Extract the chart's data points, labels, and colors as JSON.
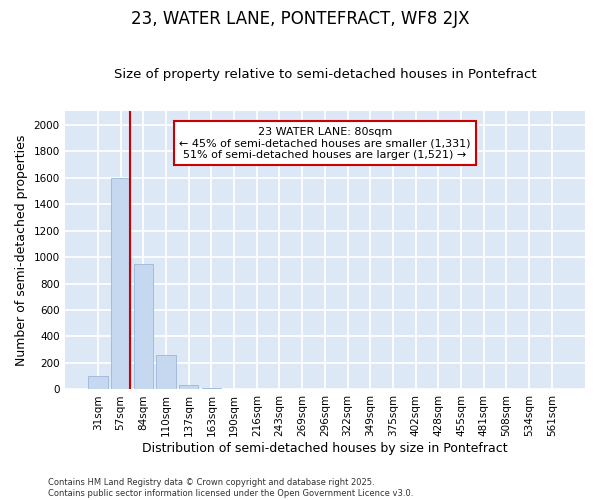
{
  "title": "23, WATER LANE, PONTEFRACT, WF8 2JX",
  "subtitle": "Size of property relative to semi-detached houses in Pontefract",
  "xlabel": "Distribution of semi-detached houses by size in Pontefract",
  "ylabel": "Number of semi-detached properties",
  "categories": [
    "31sqm",
    "57sqm",
    "84sqm",
    "110sqm",
    "137sqm",
    "163sqm",
    "190sqm",
    "216sqm",
    "243sqm",
    "269sqm",
    "296sqm",
    "322sqm",
    "349sqm",
    "375sqm",
    "402sqm",
    "428sqm",
    "455sqm",
    "481sqm",
    "508sqm",
    "534sqm",
    "561sqm"
  ],
  "values": [
    100,
    1600,
    950,
    260,
    35,
    10,
    5,
    0,
    0,
    0,
    0,
    0,
    0,
    0,
    0,
    0,
    0,
    0,
    0,
    0,
    0
  ],
  "bar_color": "#c5d8f0",
  "bar_edgecolor": "#9ab8d8",
  "vline_color": "#cc0000",
  "ylim": [
    0,
    2100
  ],
  "yticks": [
    0,
    200,
    400,
    600,
    800,
    1000,
    1200,
    1400,
    1600,
    1800,
    2000
  ],
  "annotation_text": "23 WATER LANE: 80sqm\n← 45% of semi-detached houses are smaller (1,331)\n51% of semi-detached houses are larger (1,521) →",
  "plot_bg_color": "#dce8f5",
  "fig_bg_color": "#ffffff",
  "grid_color": "#ffffff",
  "footer": "Contains HM Land Registry data © Crown copyright and database right 2025.\nContains public sector information licensed under the Open Government Licence v3.0.",
  "title_fontsize": 12,
  "subtitle_fontsize": 9.5,
  "axis_label_fontsize": 9,
  "tick_fontsize": 7.5,
  "annotation_fontsize": 8
}
